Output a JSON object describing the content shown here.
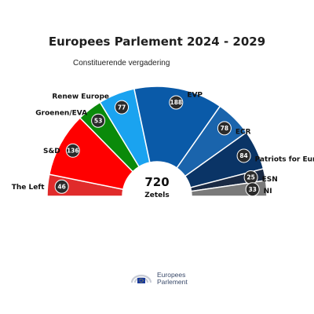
{
  "header": {
    "title": "Europees Parlement 2024 - 2029",
    "subtitle": "Constituerende vergadering"
  },
  "chart_data": {
    "type": "pie",
    "shape": "semicircle",
    "center_total": "720",
    "center_caption": "Zetels",
    "series": [
      {
        "name": "The Left",
        "value": 46,
        "color": "#e02b2b"
      },
      {
        "name": "S&D",
        "value": 136,
        "color": "#ff0000"
      },
      {
        "name": "Groenen/EVA",
        "value": 53,
        "color": "#0a8a0a"
      },
      {
        "name": "Renew Europe",
        "value": 77,
        "color": "#1aa3f0"
      },
      {
        "name": "EVP",
        "value": 188,
        "color": "#0a5aa8"
      },
      {
        "name": "ECR",
        "value": 78,
        "color": "#1a64ac"
      },
      {
        "name": "Patriots for Europe",
        "value": 84,
        "color": "#0a3466"
      },
      {
        "name": "ESN",
        "value": 25,
        "color": "#1a2a44"
      },
      {
        "name": "NI",
        "value": 33,
        "color": "#7a7a7a"
      }
    ]
  },
  "footer": {
    "logo_line1": "Europees",
    "logo_line2": "Parlement"
  }
}
